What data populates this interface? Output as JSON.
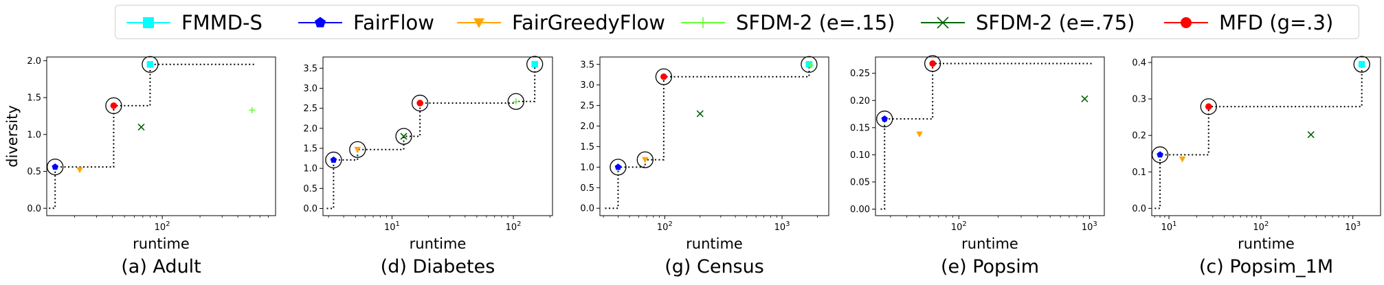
{
  "legend": [
    {
      "name": "FMMD-S",
      "color": "#00ffff",
      "marker": "square"
    },
    {
      "name": "FairFlow",
      "color": "#0000ff",
      "marker": "pentagon"
    },
    {
      "name": "FairGreedyFlow",
      "color": "#ffa500",
      "marker": "triangle-down"
    },
    {
      "name": "SFDM-2 (e=.15)",
      "color": "#66ff33",
      "marker": "plus"
    },
    {
      "name": "SFDM-2 (e=.75)",
      "color": "#006400",
      "marker": "x"
    },
    {
      "name": "MFD (g=.3)",
      "color": "#ff0000",
      "marker": "circle"
    }
  ],
  "chart_data": [
    {
      "type": "scatter",
      "title": "(a) Adult",
      "xlabel": "runtime",
      "ylabel": "diversity",
      "xscale": "log",
      "xlim": [
        12,
        800
      ],
      "ylim": [
        -0.1,
        2.05
      ],
      "yticks": [
        0.0,
        0.5,
        1.0,
        1.5,
        2.0
      ],
      "ytick_labels": [
        "0.0",
        "0.5",
        "1.0",
        "1.5",
        "2.0"
      ],
      "xticks": [
        100
      ],
      "xtick_labels": [
        "10²"
      ],
      "series": [
        {
          "name": "FMMD-S",
          "x": [
            80
          ],
          "y": [
            1.95
          ]
        },
        {
          "name": "FairFlow",
          "x": [
            14
          ],
          "y": [
            0.56
          ]
        },
        {
          "name": "FairGreedyFlow",
          "x": [
            22
          ],
          "y": [
            0.52
          ]
        },
        {
          "name": "SFDM-2 (e=.15)",
          "x": [
            520
          ],
          "y": [
            1.33
          ]
        },
        {
          "name": "SFDM-2 (e=.75)",
          "x": [
            68
          ],
          "y": [
            1.1
          ]
        },
        {
          "name": "MFD (g=.3)",
          "x": [
            41
          ],
          "y": [
            1.39
          ]
        }
      ],
      "pareto": [
        [
          14,
          0.56
        ],
        [
          41,
          1.39
        ],
        [
          80,
          1.95
        ]
      ],
      "pareto_start": 12.5,
      "pareto_end": 560
    },
    {
      "type": "scatter",
      "title": "(d) Diabetes",
      "xlabel": "runtime",
      "ylabel": "",
      "xscale": "log",
      "xlim": [
        2.7,
        210
      ],
      "ylim": [
        -0.18,
        3.78
      ],
      "yticks": [
        0.0,
        0.5,
        1.0,
        1.5,
        2.0,
        2.5,
        3.0,
        3.5
      ],
      "ytick_labels": [
        "0.0",
        "0.5",
        "1.0",
        "1.5",
        "2.0",
        "2.5",
        "3.0",
        "3.5"
      ],
      "xticks": [
        10,
        100
      ],
      "xtick_labels": [
        "10¹",
        "10²"
      ],
      "series": [
        {
          "name": "FMMD-S",
          "x": [
            150
          ],
          "y": [
            3.6
          ]
        },
        {
          "name": "FairFlow",
          "x": [
            3.3
          ],
          "y": [
            1.21
          ]
        },
        {
          "name": "FairGreedyFlow",
          "x": [
            5.2
          ],
          "y": [
            1.47
          ]
        },
        {
          "name": "SFDM-2 (e=.15)",
          "x": [
            105
          ],
          "y": [
            2.67
          ]
        },
        {
          "name": "SFDM-2 (e=.75)",
          "x": [
            12.5
          ],
          "y": [
            1.8
          ]
        },
        {
          "name": "MFD (g=.3)",
          "x": [
            17
          ],
          "y": [
            2.63
          ]
        }
      ],
      "pareto": [
        [
          3.3,
          1.21
        ],
        [
          5.2,
          1.47
        ],
        [
          12.5,
          1.8
        ],
        [
          17,
          2.63
        ],
        [
          105,
          2.67
        ],
        [
          150,
          3.6
        ]
      ],
      "pareto_start": 2.9,
      "pareto_end": null
    },
    {
      "type": "scatter",
      "title": "(g) Census",
      "xlabel": "runtime",
      "ylabel": "",
      "xscale": "log",
      "xlim": [
        28,
        2500
      ],
      "ylim": [
        -0.18,
        3.68
      ],
      "yticks": [
        0.0,
        0.5,
        1.0,
        1.5,
        2.0,
        2.5,
        3.0,
        3.5
      ],
      "ytick_labels": [
        "0.0",
        "0.5",
        "1.0",
        "1.5",
        "2.0",
        "2.5",
        "3.0",
        "3.5"
      ],
      "xticks": [
        100,
        1000
      ],
      "xtick_labels": [
        "10²",
        "10³"
      ],
      "series": [
        {
          "name": "FMMD-S",
          "x": [
            1700
          ],
          "y": [
            3.5
          ]
        },
        {
          "name": "FairFlow",
          "x": [
            40
          ],
          "y": [
            1.0
          ]
        },
        {
          "name": "FairGreedyFlow",
          "x": [
            68
          ],
          "y": [
            1.18
          ]
        },
        {
          "name": "SFDM-2 (e=.15)",
          "x": [
            1750
          ],
          "y": [
            3.48
          ]
        },
        {
          "name": "SFDM-2 (e=.75)",
          "x": [
            200
          ],
          "y": [
            2.3
          ]
        },
        {
          "name": "MFD (g=.3)",
          "x": [
            98
          ],
          "y": [
            3.2
          ]
        }
      ],
      "pareto": [
        [
          40,
          1.0
        ],
        [
          68,
          1.18
        ],
        [
          98,
          3.2
        ],
        [
          1700,
          3.5
        ]
      ],
      "pareto_start": 31,
      "pareto_end": null
    },
    {
      "type": "scatter",
      "title": "(e) Popsim",
      "xlabel": "runtime",
      "ylabel": "",
      "xscale": "log",
      "xlim": [
        23,
        1300
      ],
      "ylim": [
        -0.012,
        0.28
      ],
      "yticks": [
        0.0,
        0.05,
        0.1,
        0.15,
        0.2,
        0.25
      ],
      "ytick_labels": [
        "0.00",
        "0.05",
        "0.10",
        "0.15",
        "0.20",
        "0.25"
      ],
      "xticks": [
        100,
        1000
      ],
      "xtick_labels": [
        "10²",
        "10³"
      ],
      "series": [
        {
          "name": "FairFlow",
          "x": [
            27
          ],
          "y": [
            0.166
          ]
        },
        {
          "name": "FairGreedyFlow",
          "x": [
            50
          ],
          "y": [
            0.138
          ]
        },
        {
          "name": "SFDM-2 (e=.75)",
          "x": [
            920
          ],
          "y": [
            0.203
          ]
        },
        {
          "name": "MFD (g=.3)",
          "x": [
            63
          ],
          "y": [
            0.268
          ]
        }
      ],
      "pareto": [
        [
          27,
          0.166
        ],
        [
          63,
          0.268
        ]
      ],
      "pareto_start": 25.2,
      "pareto_end": 1080
    },
    {
      "type": "scatter",
      "title": "(c) Popsim_1M",
      "xlabel": "runtime",
      "ylabel": "",
      "xscale": "log",
      "xlim": [
        6.5,
        2000
      ],
      "ylim": [
        -0.02,
        0.415
      ],
      "yticks": [
        0.0,
        0.1,
        0.2,
        0.3,
        0.4
      ],
      "ytick_labels": [
        "0.0",
        "0.1",
        "0.2",
        "0.3",
        "0.4"
      ],
      "xticks": [
        10,
        100,
        1000
      ],
      "xtick_labels": [
        "10¹",
        "10²",
        "10³"
      ],
      "series": [
        {
          "name": "FMMD-S",
          "x": [
            1250
          ],
          "y": [
            0.395
          ]
        },
        {
          "name": "FairFlow",
          "x": [
            8
          ],
          "y": [
            0.147
          ]
        },
        {
          "name": "FairGreedyFlow",
          "x": [
            14
          ],
          "y": [
            0.135
          ]
        },
        {
          "name": "SFDM-2 (e=.75)",
          "x": [
            350
          ],
          "y": [
            0.202
          ]
        },
        {
          "name": "MFD (g=.3)",
          "x": [
            27
          ],
          "y": [
            0.279
          ]
        }
      ],
      "pareto": [
        [
          8,
          0.147
        ],
        [
          27,
          0.279
        ],
        [
          1250,
          0.395
        ]
      ],
      "pareto_start": 7,
      "pareto_end": null
    }
  ]
}
